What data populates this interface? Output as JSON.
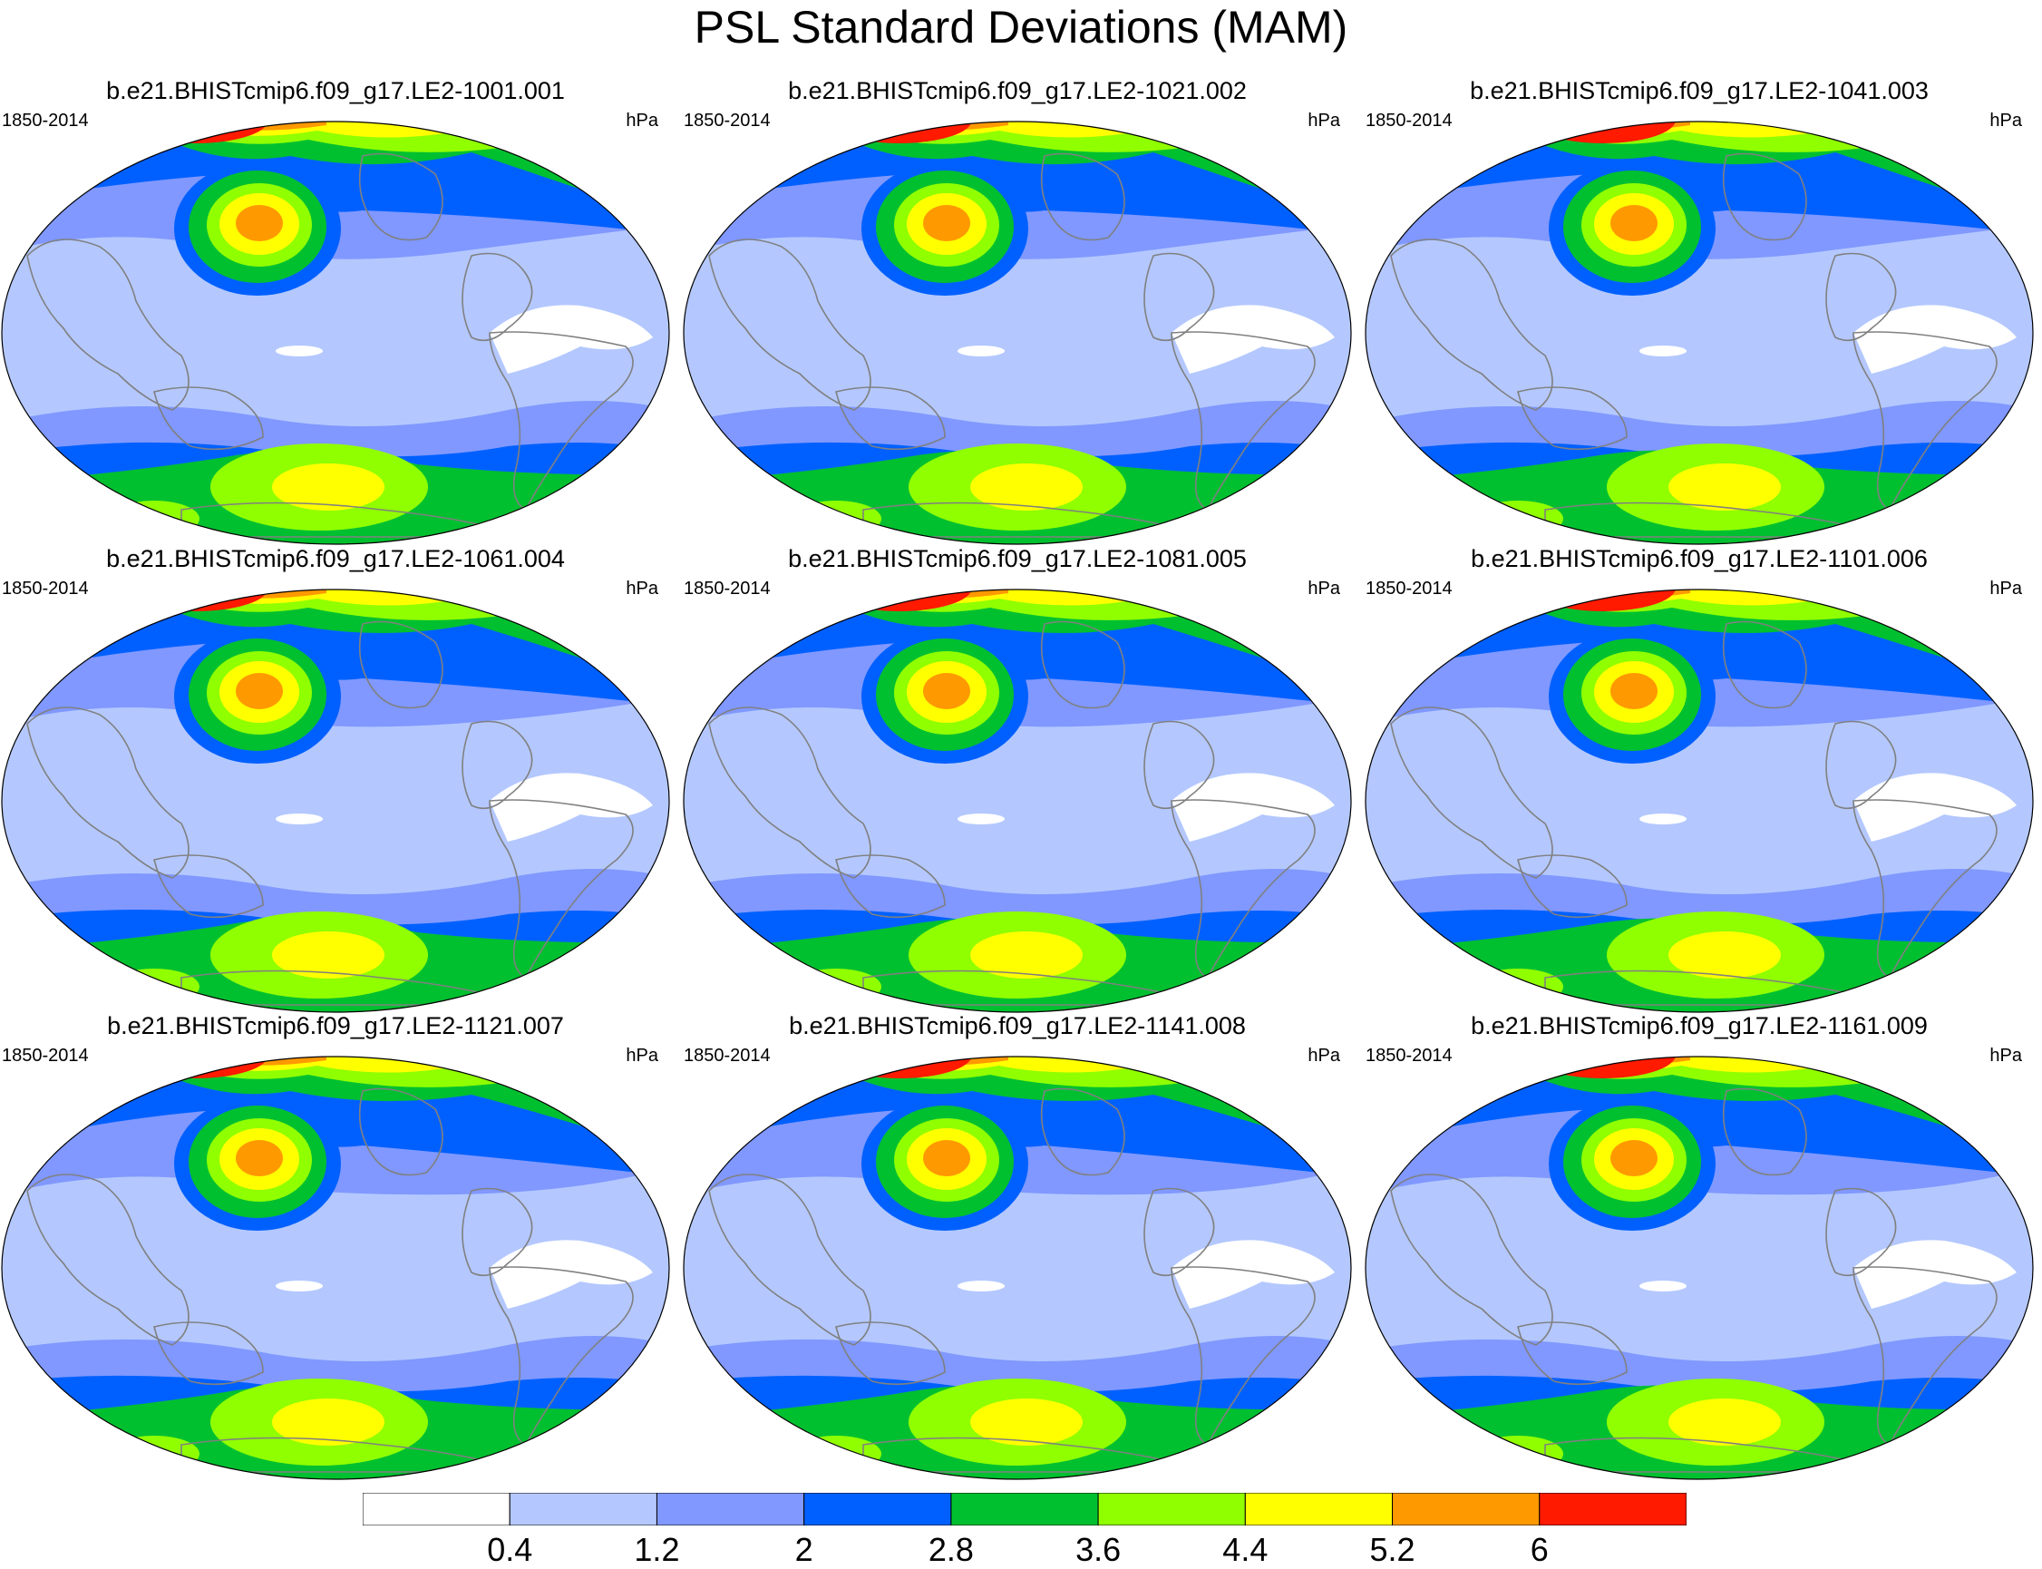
{
  "title": "PSL Standard Deviations (MAM)",
  "panels": [
    {
      "title": "b.e21.BHISTcmip6.f09_g17.LE2-1001.001",
      "period": "1850-2014",
      "units": "hPa"
    },
    {
      "title": "b.e21.BHISTcmip6.f09_g17.LE2-1021.002",
      "period": "1850-2014",
      "units": "hPa"
    },
    {
      "title": "b.e21.BHISTcmip6.f09_g17.LE2-1041.003",
      "period": "1850-2014",
      "units": "hPa"
    },
    {
      "title": "b.e21.BHISTcmip6.f09_g17.LE2-1061.004",
      "period": "1850-2014",
      "units": "hPa"
    },
    {
      "title": "b.e21.BHISTcmip6.f09_g17.LE2-1081.005",
      "period": "1850-2014",
      "units": "hPa"
    },
    {
      "title": "b.e21.BHISTcmip6.f09_g17.LE2-1101.006",
      "period": "1850-2014",
      "units": "hPa"
    },
    {
      "title": "b.e21.BHISTcmip6.f09_g17.LE2-1121.007",
      "period": "1850-2014",
      "units": "hPa"
    },
    {
      "title": "b.e21.BHISTcmip6.f09_g17.LE2-1141.008",
      "period": "1850-2014",
      "units": "hPa"
    },
    {
      "title": "b.e21.BHISTcmip6.f09_g17.LE2-1161.009",
      "period": "1850-2014",
      "units": "hPa"
    }
  ],
  "colorbar": {
    "labels": [
      "0.4",
      "1.2",
      "2",
      "2.8",
      "3.6",
      "4.4",
      "5.2",
      "6"
    ],
    "colors": [
      "#ffffff",
      "#b4c8ff",
      "#8098ff",
      "#0060ff",
      "#00c030",
      "#90ff00",
      "#ffff00",
      "#ff9900",
      "#ff1a00"
    ]
  },
  "map_colors": {
    "coastline": "#808080",
    "outline": "#000000"
  }
}
